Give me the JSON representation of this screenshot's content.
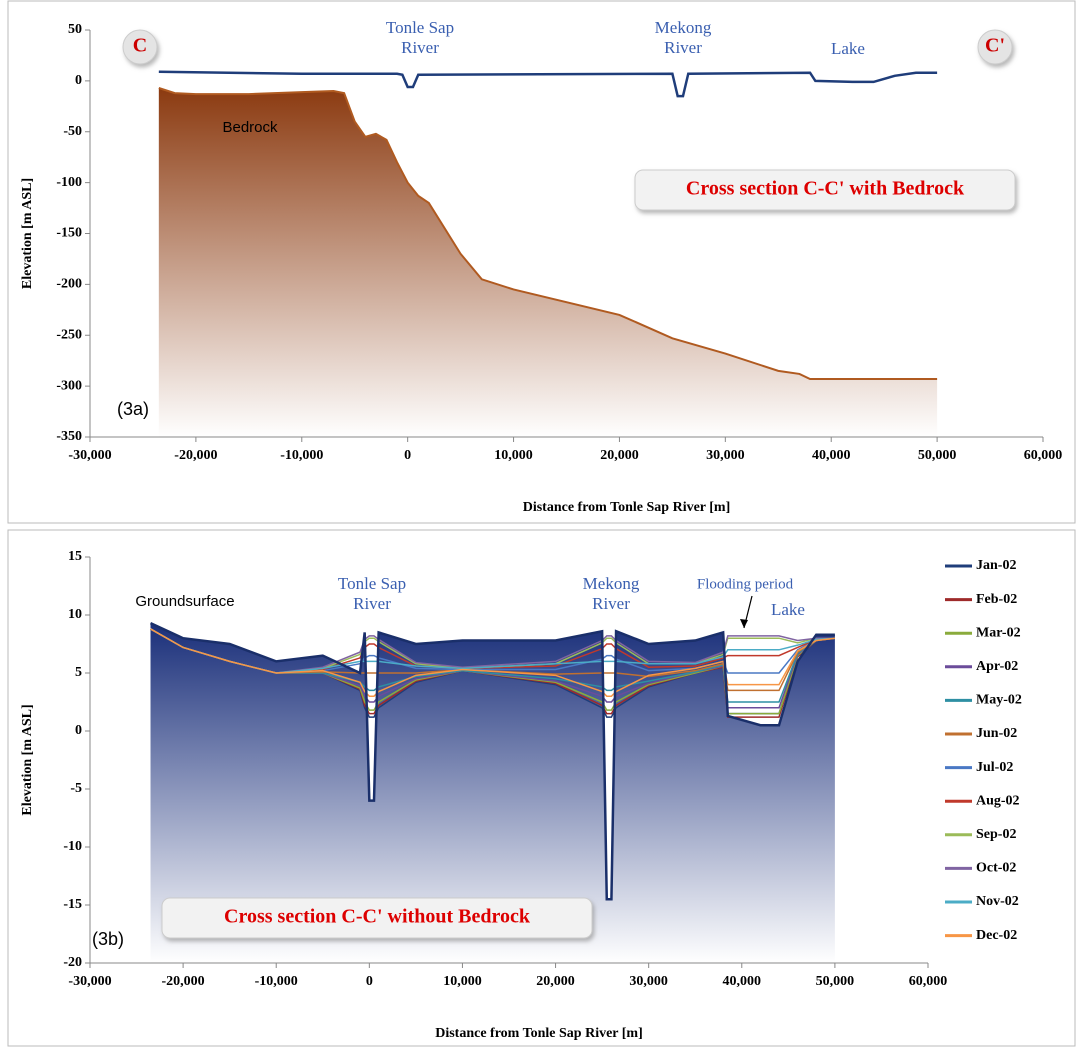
{
  "chart_data": [
    {
      "type": "line",
      "xlabel": "Distance from Tonle Sap River [m]",
      "ylabel": "Elevation [m ASL]",
      "xlim": [
        -30000,
        60000
      ],
      "ylim": [
        -350,
        50
      ],
      "xticks": [
        {
          "value": -30000,
          "label": "-30,000"
        },
        {
          "value": -20000,
          "label": "-20,000"
        },
        {
          "value": -10000,
          "label": "-10,000"
        },
        0,
        {
          "value": 10000,
          "label": "10,000"
        },
        {
          "value": 20000,
          "label": "20,000"
        },
        {
          "value": 30000,
          "label": "30,000"
        },
        {
          "value": 40000,
          "label": "40,000"
        },
        {
          "value": 50000,
          "label": "50,000"
        },
        {
          "value": 60000,
          "label": "60,000"
        }
      ],
      "yticks": [
        50,
        0,
        -50,
        -100,
        -150,
        -200,
        -250,
        -300,
        -350
      ],
      "annotations": [
        {
          "lines": [
            "C"
          ]
        },
        {
          "lines": [
            "C'"
          ]
        },
        {
          "lines": [
            "Tonle Sap",
            "River"
          ]
        },
        {
          "lines": [
            "Mekong",
            "River"
          ]
        },
        {
          "lines": [
            "Lake"
          ]
        },
        {
          "lines": [
            "Bedrock"
          ]
        },
        {
          "lines": [
            "Cross section C-C' with Bedrock"
          ]
        },
        {
          "lines": [
            "(3a)"
          ]
        }
      ],
      "series": [
        {
          "type": "area",
          "color": "#8b3a10",
          "x": [
            -23500,
            -22000,
            -20000,
            -15000,
            -10000,
            -7000,
            -6000,
            -5000,
            -4000,
            -3000,
            -2000,
            -1000,
            0,
            1000,
            2000,
            5000,
            7000,
            10000,
            20000,
            25000,
            30000,
            35000,
            37000,
            38000,
            40000,
            45000,
            50000
          ],
          "values": [
            -7,
            -12,
            -13,
            -13,
            -11,
            -10,
            -12,
            -40,
            -55,
            -52,
            -58,
            -80,
            -100,
            -113,
            -120,
            -170,
            -195,
            -205,
            -230,
            -253,
            -268,
            -285,
            -288,
            -293,
            -293,
            -293,
            -293
          ]
        },
        {
          "type": "line",
          "color": "#1f3d7a",
          "x": [
            -23500,
            -10000,
            -1000,
            -500,
            0,
            500,
            1000,
            25000,
            25500,
            26000,
            26500,
            38000,
            38500,
            42000,
            44000,
            46000,
            48000,
            50000
          ],
          "values": [
            9,
            7,
            7,
            6,
            -6,
            -6,
            6,
            7,
            -15,
            -15,
            7,
            8,
            0,
            -1,
            -1,
            5,
            8,
            8
          ]
        }
      ]
    },
    {
      "type": "line",
      "xlabel": "Distance from Tonle Sap River [m]",
      "ylabel": "Elevation [m ASL]",
      "xlim": [
        -30000,
        60000
      ],
      "ylim": [
        -20,
        15
      ],
      "xticks": [
        {
          "value": -30000,
          "label": "-30,000"
        },
        {
          "value": -20000,
          "label": "-20,000"
        },
        {
          "value": -10000,
          "label": "-10,000"
        },
        0,
        {
          "value": 10000,
          "label": "10,000"
        },
        {
          "value": 20000,
          "label": "20,000"
        },
        {
          "value": 30000,
          "label": "30,000"
        },
        {
          "value": 40000,
          "label": "40,000"
        },
        {
          "value": 50000,
          "label": "50,000"
        },
        {
          "value": 60000,
          "label": "60,000"
        }
      ],
      "yticks": [
        15,
        10,
        5,
        0,
        -5,
        -10,
        -15,
        -20
      ],
      "annotations": [
        {
          "lines": [
            "Groundsurface"
          ]
        },
        {
          "lines": [
            "Tonle Sap",
            "River"
          ]
        },
        {
          "lines": [
            "Mekong",
            "River"
          ]
        },
        {
          "lines": [
            "Flooding period"
          ]
        },
        {
          "lines": [
            "Lake"
          ]
        },
        {
          "lines": [
            "Cross section C-C' without Bedrock"
          ]
        },
        {
          "lines": [
            "(3b)"
          ]
        }
      ],
      "x": [
        -23500,
        -20000,
        -15000,
        -10000,
        -5000,
        -1000,
        -500,
        0,
        500,
        1000,
        5000,
        10000,
        20000,
        25000,
        25500,
        26000,
        26500,
        30000,
        35000,
        38000,
        38500,
        42000,
        44000,
        46000,
        48000,
        50000
      ],
      "series": [
        {
          "type": "area",
          "color": "#1a2f7a",
          "values": [
            9.3,
            8,
            7.5,
            6,
            6.5,
            5,
            8.5,
            -6,
            -6,
            8.5,
            7.5,
            7.8,
            7.8,
            8.6,
            -14.5,
            -14.5,
            8.6,
            7.5,
            7.8,
            8.5,
            1.3,
            0.5,
            0.5,
            6,
            8.3,
            8.3
          ]
        },
        {
          "name": "Jan-02",
          "color": "#1f3d7a",
          "values": [
            8.8,
            7.2,
            6.0,
            5.0,
            5.0,
            3.5,
            2.0,
            1.2,
            1.2,
            2.0,
            4.2,
            5.2,
            4.0,
            2.0,
            1.2,
            1.2,
            2.0,
            3.8,
            5.0,
            5.5,
            1.5,
            1.5,
            1.5,
            6.5,
            7.8,
            8.0
          ]
        },
        {
          "name": "Feb-02",
          "color": "#9e2a2a",
          "values": [
            8.8,
            7.2,
            6.0,
            5.0,
            5.0,
            3.6,
            2.2,
            1.5,
            1.5,
            2.2,
            4.3,
            5.2,
            4.1,
            2.2,
            1.5,
            1.5,
            2.2,
            3.9,
            5.0,
            5.5,
            1.2,
            1.2,
            1.2,
            6.4,
            7.8,
            8.0
          ]
        },
        {
          "name": "Mar-02",
          "color": "#8aab3c",
          "values": [
            8.8,
            7.2,
            6.0,
            5.0,
            5.0,
            3.7,
            2.5,
            1.8,
            1.8,
            2.5,
            4.4,
            5.2,
            4.2,
            2.5,
            1.8,
            1.8,
            2.5,
            4.0,
            5.0,
            5.6,
            1.5,
            1.5,
            1.5,
            6.5,
            7.8,
            8.0
          ]
        },
        {
          "name": "Apr-02",
          "color": "#6b4c9a",
          "values": [
            8.8,
            7.2,
            6.0,
            5.0,
            5.0,
            3.9,
            3.0,
            2.5,
            2.5,
            3.0,
            4.5,
            5.2,
            4.3,
            3.0,
            2.5,
            2.5,
            3.0,
            4.1,
            5.1,
            5.6,
            2.0,
            2.0,
            2.0,
            6.6,
            7.8,
            8.0
          ]
        },
        {
          "name": "May-02",
          "color": "#2e8fa3",
          "values": [
            8.8,
            7.2,
            6.0,
            5.0,
            5.0,
            4.2,
            3.8,
            3.5,
            3.5,
            3.8,
            4.7,
            5.2,
            4.5,
            3.8,
            3.5,
            3.5,
            3.8,
            4.3,
            5.1,
            5.7,
            2.5,
            2.5,
            2.5,
            6.7,
            7.8,
            8.0
          ]
        },
        {
          "name": "Jun-02",
          "color": "#c07030",
          "values": [
            8.8,
            7.2,
            6.0,
            5.0,
            5.1,
            5.0,
            5.0,
            5.0,
            5.0,
            5.0,
            5.0,
            5.3,
            4.9,
            5.0,
            5.0,
            5.0,
            5.0,
            4.7,
            5.2,
            5.8,
            3.5,
            3.5,
            3.5,
            6.8,
            7.8,
            8.0
          ]
        },
        {
          "name": "Jul-02",
          "color": "#4a78c4",
          "values": [
            8.8,
            7.2,
            6.0,
            5.0,
            5.2,
            5.8,
            6.3,
            6.5,
            6.5,
            6.3,
            5.4,
            5.3,
            5.3,
            6.2,
            6.5,
            6.5,
            6.2,
            5.2,
            5.4,
            6.0,
            5.0,
            5.0,
            5.0,
            7.0,
            7.9,
            8.0
          ]
        },
        {
          "name": "Aug-02",
          "color": "#c0392b",
          "values": [
            8.8,
            7.2,
            6.0,
            5.0,
            5.3,
            6.3,
            7.2,
            7.5,
            7.5,
            7.2,
            5.6,
            5.4,
            5.6,
            7.1,
            7.5,
            7.5,
            7.1,
            5.5,
            5.6,
            6.3,
            6.5,
            6.5,
            6.5,
            7.2,
            7.9,
            8.0
          ]
        },
        {
          "name": "Sep-02",
          "color": "#9bbb59",
          "values": [
            8.8,
            7.2,
            6.0,
            5.0,
            5.4,
            6.6,
            7.7,
            8.0,
            8.0,
            7.7,
            5.8,
            5.4,
            5.8,
            7.6,
            8.0,
            8.0,
            7.6,
            5.8,
            5.8,
            6.6,
            8.0,
            8.0,
            8.0,
            7.6,
            8.0,
            8.0
          ]
        },
        {
          "name": "Oct-02",
          "color": "#8064a2",
          "values": [
            8.8,
            7.2,
            6.0,
            5.0,
            5.5,
            6.8,
            7.9,
            8.2,
            8.2,
            7.9,
            5.9,
            5.5,
            6.0,
            7.8,
            8.2,
            8.2,
            7.8,
            6.0,
            5.9,
            6.8,
            8.2,
            8.2,
            8.2,
            7.8,
            8.0,
            8.0
          ]
        },
        {
          "name": "Nov-02",
          "color": "#4bacc6",
          "values": [
            8.8,
            7.2,
            6.0,
            5.0,
            5.4,
            6.0,
            6.0,
            6.0,
            6.0,
            6.0,
            5.6,
            5.4,
            5.8,
            6.0,
            6.0,
            6.0,
            6.0,
            5.8,
            5.8,
            6.4,
            7.0,
            7.0,
            7.0,
            7.4,
            7.9,
            8.0
          ]
        },
        {
          "name": "Dec-02",
          "color": "#f79646",
          "values": [
            8.8,
            7.2,
            6.0,
            5.0,
            5.2,
            4.2,
            3.4,
            3.0,
            3.0,
            3.4,
            4.8,
            5.3,
            4.8,
            3.4,
            3.0,
            3.0,
            3.4,
            4.8,
            5.4,
            6.0,
            4.0,
            4.0,
            4.0,
            6.9,
            7.8,
            8.0
          ]
        }
      ]
    }
  ]
}
